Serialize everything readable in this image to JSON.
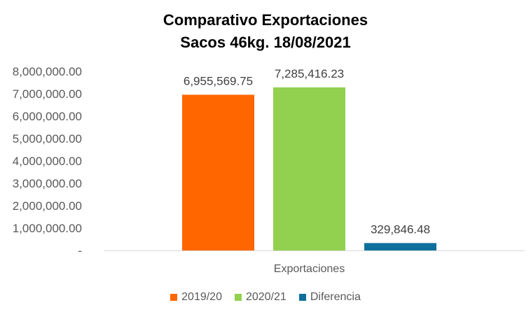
{
  "chart_data": {
    "type": "bar",
    "title": [
      "Comparativo Exportaciones",
      "Sacos 46kg. 18/08/2021"
    ],
    "categories": [
      "Exportaciones"
    ],
    "series": [
      {
        "name": "2019/20",
        "values": [
          6955569.75
        ],
        "label": "6,955,569.75",
        "color": "#ff6600"
      },
      {
        "name": "2020/21",
        "values": [
          7285416.23
        ],
        "label": "7,285,416.23",
        "color": "#92d050"
      },
      {
        "name": "Diferencia",
        "values": [
          329846.48
        ],
        "label": "329,846.48",
        "color": "#0e6f9c"
      }
    ],
    "ylim": [
      0,
      8000000
    ],
    "y_ticks": [
      0,
      1000000,
      2000000,
      3000000,
      4000000,
      5000000,
      6000000,
      7000000,
      8000000
    ],
    "y_tick_labels": [
      "-",
      "1,000,000.00",
      "2,000,000.00",
      "3,000,000.00",
      "4,000,000.00",
      "5,000,000.00",
      "6,000,000.00",
      "7,000,000.00",
      "8,000,000.00"
    ],
    "xlabel": "",
    "ylabel": "",
    "grid": false,
    "legend_position": "bottom"
  }
}
